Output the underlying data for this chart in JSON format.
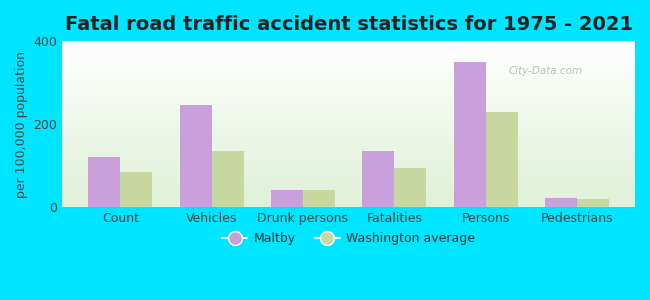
{
  "title": "Fatal road traffic accident statistics for 1975 - 2021",
  "ylabel": "per 100,000 population",
  "categories": [
    "Count",
    "Vehicles",
    "Drunk persons",
    "Fatalities",
    "Persons",
    "Pedestrians"
  ],
  "maltby": [
    120,
    245,
    40,
    135,
    350,
    22
  ],
  "washington": [
    85,
    135,
    42,
    95,
    230,
    20
  ],
  "maltby_color": "#c9a0dc",
  "washington_color": "#c8d8a0",
  "background_outer": "#00e5ff",
  "title_fontsize": 14,
  "label_fontsize": 9,
  "tick_fontsize": 9,
  "legend_labels": [
    "Maltby",
    "Washington average"
  ],
  "ylim": [
    0,
    400
  ],
  "yticks": [
    0,
    200,
    400
  ],
  "bar_width": 0.35,
  "gradient_top": "#f0fff0",
  "gradient_bottom": "#d8f0d0"
}
